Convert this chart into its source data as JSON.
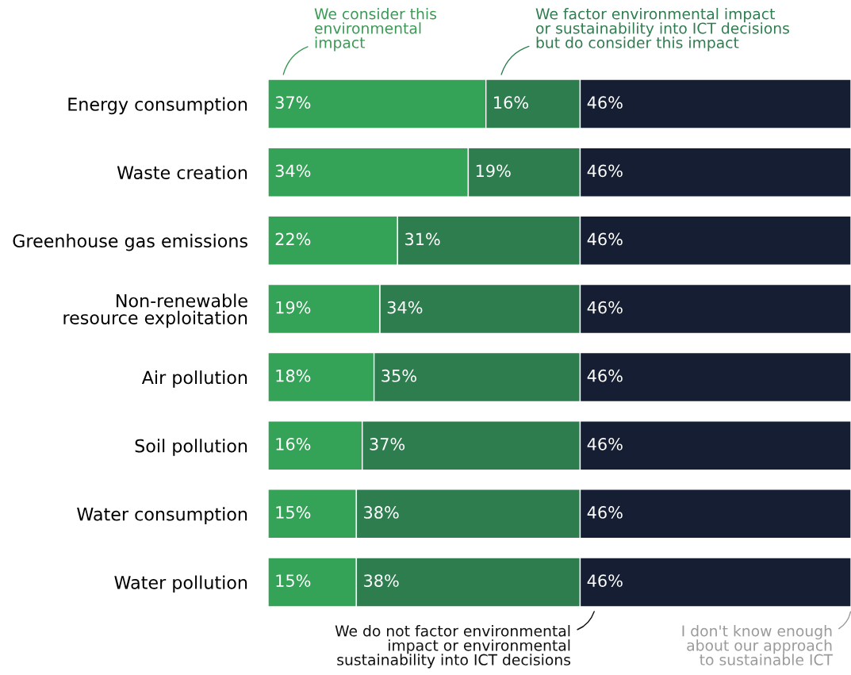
{
  "chart_data": {
    "type": "bar",
    "orientation": "horizontal",
    "stacked": true,
    "categories": [
      "Energy consumption",
      "Waste creation",
      "Greenhouse gas emissions",
      "Non-renewable\nresource exploitation",
      "Air pollution",
      "Soil pollution",
      "Water consumption",
      "Water pollution"
    ],
    "series": [
      {
        "name": "We consider this\nenvironmental\nimpact",
        "color": "#34a357",
        "values": [
          37,
          34,
          22,
          19,
          18,
          16,
          15,
          15
        ],
        "value_labels": [
          "37%",
          "34%",
          "22%",
          "19%",
          "18%",
          "16%",
          "15%",
          "15%"
        ]
      },
      {
        "name": "We factor environmental impact\nor sustainability into ICT decisions\nbut do consider this impact",
        "color": "#2e7d4f",
        "values": [
          16,
          19,
          31,
          34,
          35,
          37,
          38,
          38
        ],
        "value_labels": [
          "16%",
          "19%",
          "31%",
          "34%",
          "35%",
          "37%",
          "38%",
          "38%"
        ]
      },
      {
        "name": "We do not factor environmental\nimpact or environmental\nsustainability into ICT decisions",
        "color": "#151e33",
        "values": [
          46,
          46,
          46,
          46,
          46,
          46,
          46,
          46
        ],
        "value_labels": [
          "46%",
          "46%",
          "46%",
          "46%",
          "46%",
          "46%",
          "46%",
          "46%"
        ]
      }
    ],
    "annotations": [
      "I don't know enough\nabout our approach\nto sustainable ICT"
    ],
    "tick_labels": "y",
    "grid": false,
    "legend": false
  }
}
